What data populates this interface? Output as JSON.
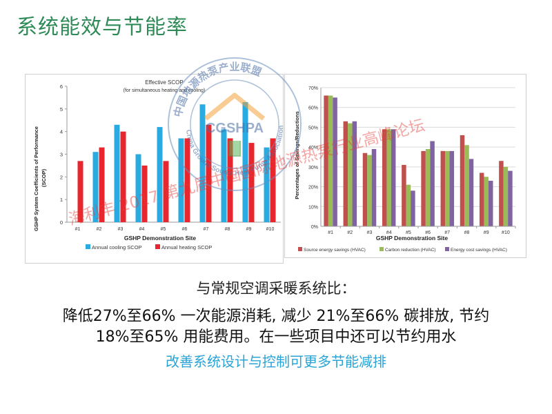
{
  "slide": {
    "title": "系统能效与节能率",
    "comparison_line": "与常规空调采暖系统比：",
    "savings_line_1": "降低27%至66% 一次能源消耗, 减少 21%至66% 碳排放, 节约",
    "savings_line_2": "18%至65% 用能费用。在一些项目中还可以节约用水",
    "call_to_action": "改善系统设计与控制可更多节能减排",
    "watermark_text": "海利丰 2017 第九届中国国际地源热泵行业高峰论坛",
    "logo": {
      "center_text": "CGSHPA",
      "ring_text_cn": "中国地源热泵产业联盟",
      "ring_text_en": "China Ground Source Heat Pump Association"
    }
  },
  "colors": {
    "title": "#2e8b57",
    "cooling": "#29abe2",
    "heating": "#e8262d",
    "source_energy": "#c0504d",
    "carbon": "#9bbb59",
    "energy_cost": "#8064a2",
    "call_to_action": "#29a3d6"
  },
  "chart_data": [
    {
      "type": "bar",
      "title": "Effective SCOP",
      "subtitle": "(for simultaneous heating and cooling)",
      "xlabel": "GSHP Demonstration Site",
      "ylabel": "GSHP System Coefficients of Performance (SCOP)",
      "categories": [
        "#1",
        "#2",
        "#3",
        "#4",
        "#5",
        "#6",
        "#7",
        "#8",
        "#9",
        "#10"
      ],
      "ylim": [
        0,
        6
      ],
      "yticks": [
        "0",
        "1",
        "2",
        "3",
        "4",
        "5",
        "6"
      ],
      "grid": false,
      "legend_position": "bottom",
      "series": [
        {
          "name": "Annual cooling SCOP",
          "values": [
            null,
            3.1,
            4.3,
            3.0,
            4.2,
            3.7,
            5.2,
            4.1,
            5.3,
            3.3
          ]
        },
        {
          "name": "Annual heating SCOP",
          "values": [
            2.7,
            3.3,
            4.0,
            2.5,
            2.7,
            3.7,
            4.3,
            3.7,
            3.5,
            3.7
          ]
        }
      ]
    },
    {
      "type": "bar",
      "xlabel": "GSHP Demonstration Site",
      "ylabel": "Percentages of Savings/Reductions",
      "categories": [
        "#1",
        "#2",
        "#3",
        "#4",
        "#5",
        "#6",
        "#7",
        "#8",
        "#9",
        "#10"
      ],
      "ylim": [
        0,
        70
      ],
      "yticks": [
        "0%",
        "10%",
        "20%",
        "30%",
        "40%",
        "50%",
        "60%",
        "70%"
      ],
      "grid": true,
      "legend_position": "bottom",
      "series": [
        {
          "name": "Source energy savings (HVAC)",
          "values": [
            66,
            53,
            37,
            49,
            31,
            38,
            38,
            46,
            27,
            33
          ]
        },
        {
          "name": "Carbon reduction (HVAC)",
          "values": [
            66,
            52,
            36,
            49,
            21,
            39,
            38,
            41,
            25,
            30
          ]
        },
        {
          "name": "Energy cost savings (HVAC)",
          "values": [
            65,
            53,
            39,
            49,
            18,
            43,
            38,
            34,
            23,
            28
          ]
        }
      ]
    }
  ]
}
